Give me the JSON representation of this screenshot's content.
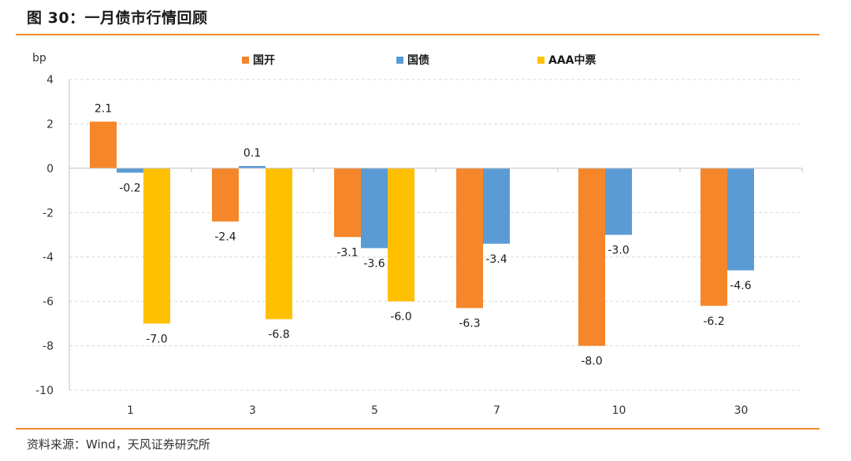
{
  "header": {
    "title": "图 30：一月债市行情回顾"
  },
  "footer": {
    "source": "资料来源：Wind，天风证券研究所"
  },
  "chart_data": {
    "type": "bar",
    "title": "",
    "xlabel": "",
    "ylabel": "bp",
    "ylim": [
      -10,
      4
    ],
    "yticks": [
      4,
      2,
      0,
      -2,
      -4,
      -6,
      -8,
      -10
    ],
    "grid": true,
    "legend_position": "top",
    "categories": [
      "1",
      "3",
      "5",
      "7",
      "10",
      "30"
    ],
    "series": [
      {
        "name": "国开",
        "color": "#F5862A",
        "values": [
          2.1,
          -2.4,
          -3.1,
          -6.3,
          -8.0,
          -6.2
        ],
        "labels": [
          "2.1",
          "-2.4",
          "-3.1",
          "-6.3",
          "-8.0",
          "-6.2"
        ]
      },
      {
        "name": "国债",
        "color": "#5B9BD5",
        "values": [
          -0.2,
          0.1,
          -3.6,
          -3.4,
          -3.0,
          -4.6
        ],
        "labels": [
          "-0.2",
          "0.1",
          "-3.6",
          "-3.4",
          "-3.0",
          "-4.6"
        ]
      },
      {
        "name": "AAA中票",
        "color": "#FFC000",
        "values": [
          -7.0,
          -6.8,
          -6.0,
          null,
          null,
          null
        ],
        "labels": [
          "-7.0",
          "-6.8",
          "-6.0",
          null,
          null,
          null
        ]
      }
    ]
  }
}
